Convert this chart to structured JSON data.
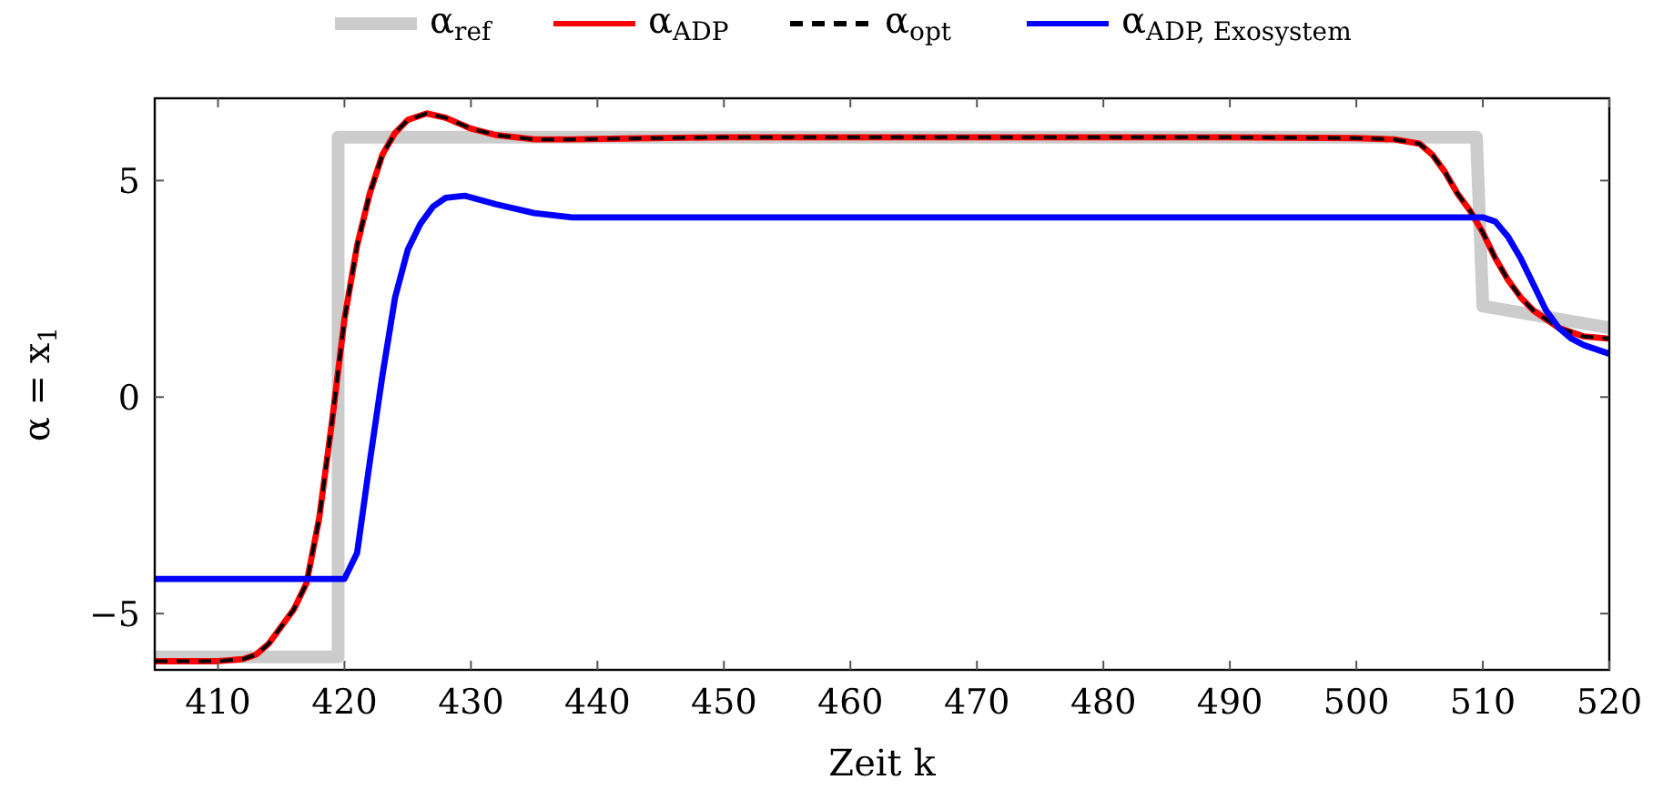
{
  "chart_data": {
    "type": "line",
    "xlabel": "Zeit k",
    "ylabel": "α = x$_{1}$",
    "xlim": [
      405,
      520
    ],
    "ylim": [
      -6.3,
      6.9
    ],
    "xticks": [
      410,
      420,
      430,
      440,
      450,
      460,
      470,
      480,
      490,
      500,
      510,
      520
    ],
    "yticks": [
      -5,
      0,
      5
    ],
    "grid": false,
    "legend": "top",
    "line_style": "solid",
    "marker": "none",
    "series": [
      {
        "name": "α$_{ref}$",
        "color": "#cccccc",
        "x": [
          405,
          419.5,
          419.5,
          509.5,
          510,
          520
        ],
        "values": [
          -6,
          -6,
          6,
          6,
          2.1,
          1.6
        ]
      },
      {
        "name": "α$_{ADP}$",
        "color": "#ff0000",
        "x": [
          405,
          410,
          412,
          413,
          414,
          415,
          416,
          417,
          418,
          419,
          420,
          421,
          422,
          423,
          424,
          425,
          426.5,
          428,
          430,
          432,
          435,
          438,
          442,
          450,
          470,
          490,
          500,
          503,
          505,
          506,
          507,
          508,
          509,
          510,
          511,
          512,
          513,
          514,
          516,
          518,
          520
        ],
        "values": [
          -6.1,
          -6.1,
          -6.05,
          -5.95,
          -5.7,
          -5.3,
          -4.9,
          -4.3,
          -2.8,
          -0.6,
          1.8,
          3.5,
          4.7,
          5.6,
          6.1,
          6.4,
          6.55,
          6.45,
          6.2,
          6.05,
          5.95,
          5.95,
          5.97,
          6,
          6,
          6,
          5.98,
          5.95,
          5.85,
          5.6,
          5.2,
          4.7,
          4.3,
          3.8,
          3.2,
          2.7,
          2.3,
          2,
          1.6,
          1.4,
          1.35
        ]
      },
      {
        "name": "α$_{opt}$",
        "color": "#000000",
        "line_style": "dashed",
        "x": [
          405,
          410,
          412,
          413,
          414,
          415,
          416,
          417,
          418,
          419,
          420,
          421,
          422,
          423,
          424,
          425,
          426.5,
          428,
          430,
          432,
          435,
          438,
          442,
          450,
          470,
          490,
          500,
          503,
          505,
          506,
          507,
          508,
          509,
          510,
          511,
          512,
          513,
          514,
          516,
          518,
          520
        ],
        "values": [
          -6.1,
          -6.1,
          -6.05,
          -5.95,
          -5.7,
          -5.3,
          -4.9,
          -4.3,
          -2.8,
          -0.6,
          1.8,
          3.5,
          4.7,
          5.6,
          6.1,
          6.4,
          6.55,
          6.45,
          6.2,
          6.05,
          5.95,
          5.95,
          5.97,
          6,
          6,
          6,
          5.98,
          5.95,
          5.85,
          5.6,
          5.2,
          4.7,
          4.3,
          3.8,
          3.2,
          2.7,
          2.3,
          2,
          1.6,
          1.4,
          1.35
        ]
      },
      {
        "name": "α$_{ADP, Exosystem}$",
        "color": "#0000ff",
        "x": [
          405,
          420,
          421,
          422,
          423,
          424,
          425,
          426,
          427,
          428,
          429.5,
          432,
          435,
          438,
          445,
          470,
          500,
          510,
          511,
          512,
          513,
          514,
          515,
          516,
          517,
          518,
          519,
          520
        ],
        "values": [
          -4.2,
          -4.2,
          -3.6,
          -1.5,
          0.5,
          2.3,
          3.4,
          4,
          4.4,
          4.6,
          4.65,
          4.45,
          4.25,
          4.15,
          4.15,
          4.15,
          4.15,
          4.15,
          4.05,
          3.7,
          3.2,
          2.6,
          2,
          1.6,
          1.35,
          1.2,
          1.1,
          1
        ]
      }
    ]
  }
}
